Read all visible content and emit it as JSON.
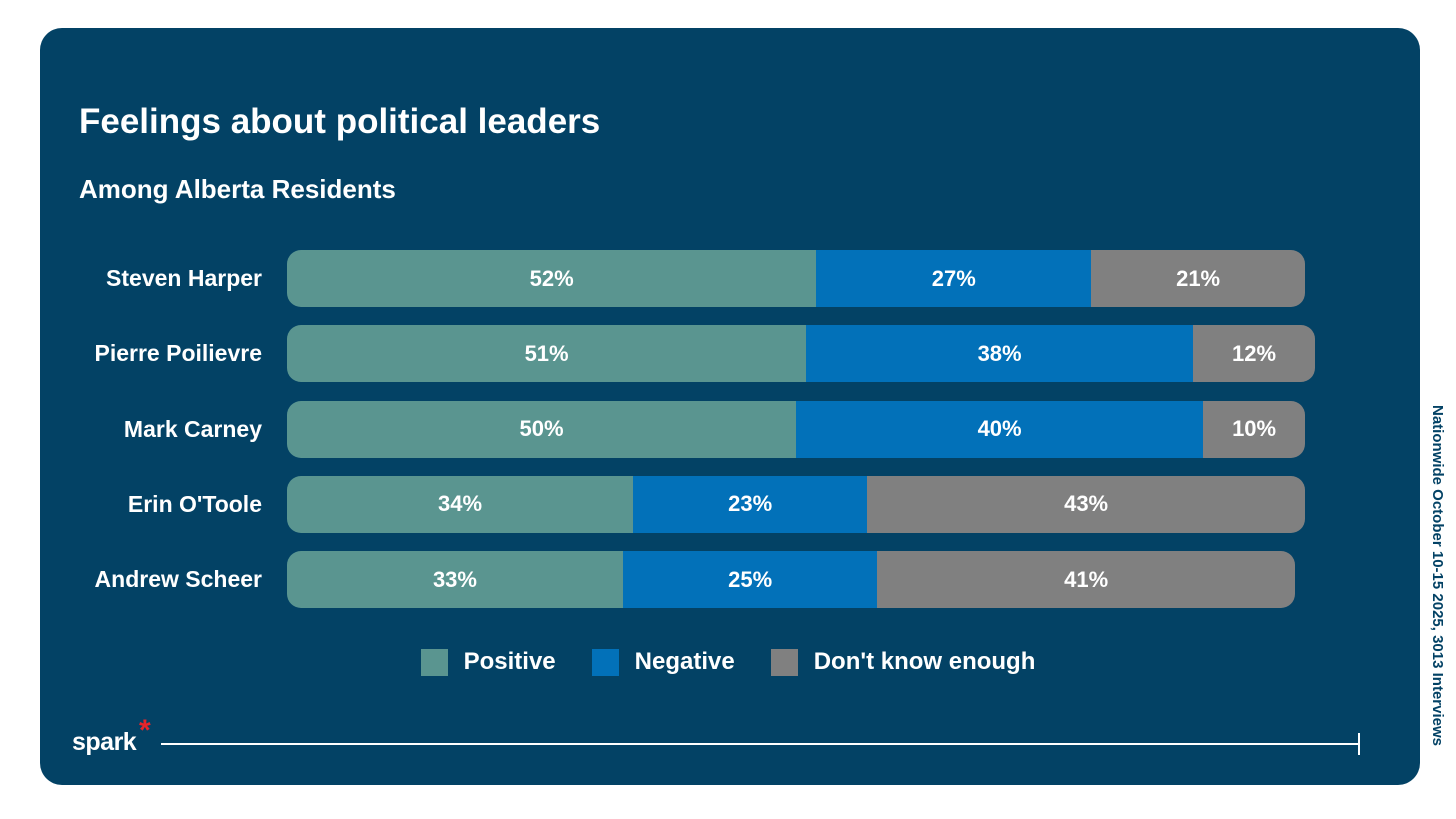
{
  "chart_data": {
    "type": "bar",
    "orientation": "horizontal-stacked",
    "title": "Feelings about political leaders",
    "subtitle": "Among Alberta Residents",
    "categories": [
      "Steven Harper",
      "Pierre Poilievre",
      "Mark Carney",
      "Erin O'Toole",
      "Andrew Scheer"
    ],
    "series": [
      {
        "name": "Positive",
        "color": "#5a9590",
        "values": [
          52,
          51,
          50,
          34,
          33
        ]
      },
      {
        "name": "Negative",
        "color": "#0271b9",
        "values": [
          27,
          38,
          40,
          23,
          25
        ]
      },
      {
        "name": "Don't know enough",
        "color": "#808080",
        "values": [
          21,
          12,
          10,
          43,
          41
        ]
      }
    ],
    "unit": "%",
    "legend": "bottom-center"
  },
  "source_note": "Nationwide October 10-15 2025, 3013 Interviews",
  "logo": "spark*",
  "colors": {
    "panel": "#034265",
    "accent": "#e6242a"
  }
}
